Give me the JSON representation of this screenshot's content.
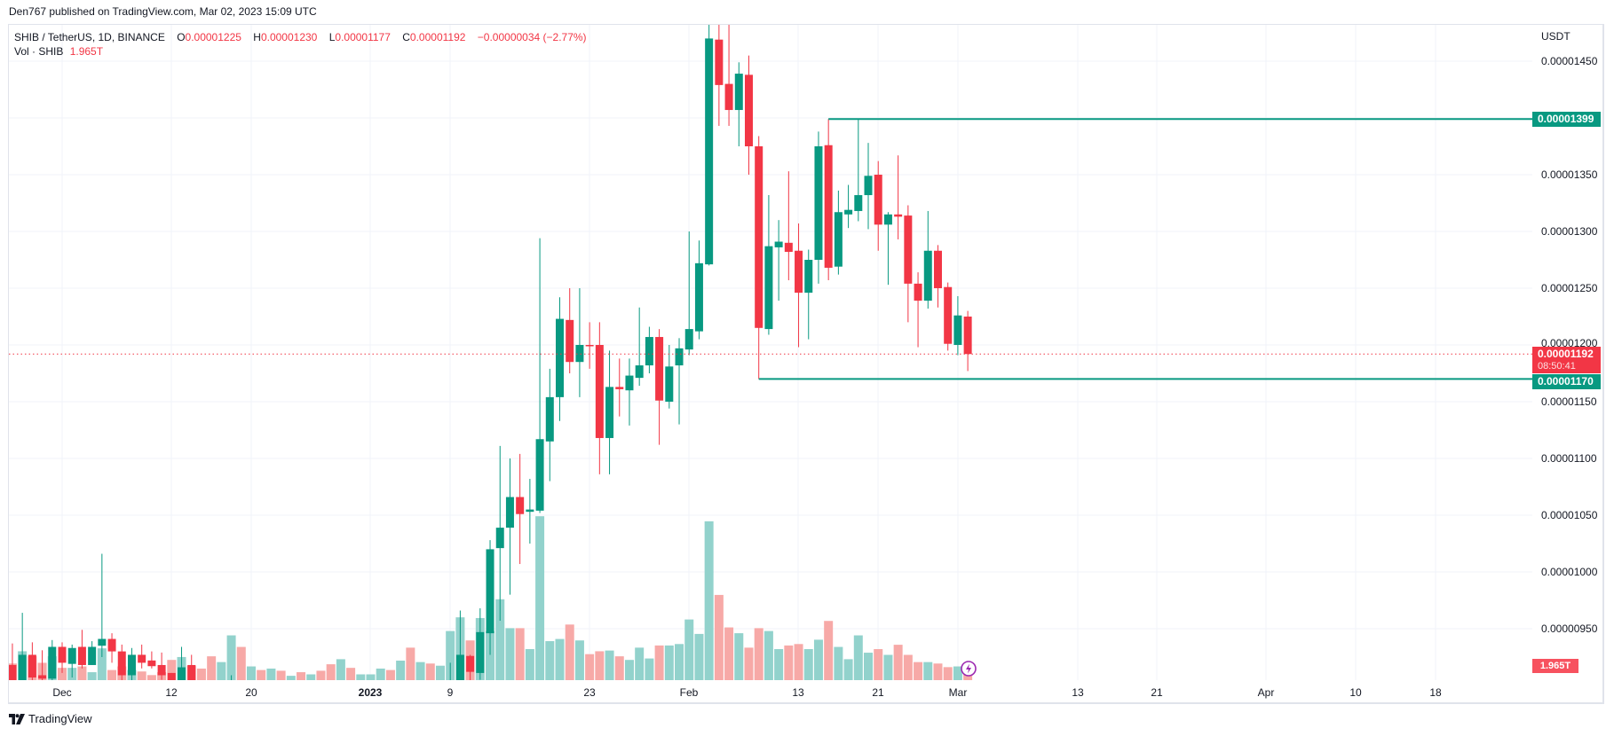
{
  "header": {
    "published": "Den767 published on TradingView.com, Mar 02, 2023 15:09 UTC"
  },
  "legend": {
    "symbol": "SHIB / TetherUS, 1D, BINANCE",
    "o_label": "O",
    "o": "0.00001225",
    "h_label": "H",
    "h": "0.00001230",
    "l_label": "L",
    "l": "0.00001177",
    "c_label": "C",
    "c": "0.00001192",
    "change": "−0.00000034 (−2.77%)",
    "vol_label": "Vol · SHIB",
    "vol_value": "1.965T"
  },
  "price_axis": {
    "unit": "USDT",
    "ticks": [
      "0.00001450",
      "0.00001350",
      "0.00001300",
      "0.00001250",
      "0.00001200",
      "0.00001150",
      "0.00001100",
      "0.00001050",
      "0.00001000",
      "0.00000950"
    ],
    "level_high_label": "0.00001399",
    "last_price_label": "0.00001192",
    "countdown": "08:50:41",
    "level_low_label": "0.00001170",
    "volume_label": "1.965T"
  },
  "time_axis": {
    "ticks": [
      "Dec",
      "12",
      "20",
      "2023",
      "9",
      "23",
      "Feb",
      "13",
      "21",
      "Mar",
      "13",
      "21",
      "Apr",
      "10",
      "18"
    ]
  },
  "branding": {
    "logo_text": "TradingView"
  },
  "colors": {
    "up": "#089981",
    "down": "#f23645",
    "up_volume": "#92d2cc",
    "down_volume": "#f7a9a7",
    "level_line": "#089981",
    "last_price_line": "#f23645",
    "grid": "#f0f3fa",
    "alert_icon": "#9c27b0"
  },
  "icons": {
    "alert": "lightning-icon",
    "logo": "tradingview-logo-icon"
  },
  "chart_data": {
    "type": "candlestick",
    "symbol": "SHIB / TetherUS",
    "interval": "1D",
    "exchange": "BINANCE",
    "ylabel": "USDT",
    "ylim": [
      9.05e-06,
      1.483e-05
    ],
    "grid": true,
    "horizontal_levels": [
      {
        "price": 1.399e-05,
        "from": "2023-02-16"
      },
      {
        "price": 1.17e-05,
        "from": "2023-02-09"
      }
    ],
    "last_price": 1.192e-05,
    "volume_unit": "T",
    "columns": [
      "date",
      "open",
      "high",
      "low",
      "close",
      "volume",
      "up"
    ],
    "candles": [
      [
        "2022-11-26",
        9.18e-06,
        9.37e-06,
        9e-06,
        9.03e-06,
        2.3,
        false
      ],
      [
        "2022-11-27",
        9.03e-06,
        9.64e-06,
        9e-06,
        9.27e-06,
        4.0,
        true
      ],
      [
        "2022-11-28",
        9.27e-06,
        9.38e-06,
        9.02e-06,
        9.07e-06,
        3.3,
        false
      ],
      [
        "2022-11-29",
        9.09e-06,
        9.31e-06,
        9.03e-06,
        9.06e-06,
        2.4,
        false
      ],
      [
        "2022-11-30",
        9.06e-06,
        9.4e-06,
        9.04e-06,
        9.34e-06,
        3.3,
        true
      ],
      [
        "2022-12-01",
        9.34e-06,
        9.38e-06,
        9.11e-06,
        9.2e-06,
        1.7,
        false
      ],
      [
        "2022-12-02",
        9.19e-06,
        9.36e-06,
        9.07e-06,
        9.33e-06,
        1.7,
        true
      ],
      [
        "2022-12-03",
        9.34e-06,
        9.49e-06,
        9.15e-06,
        9.18e-06,
        1.9,
        false
      ],
      [
        "2022-12-04",
        9.18e-06,
        9.39e-06,
        9.18e-06,
        9.34e-06,
        1.1,
        true
      ],
      [
        "2022-12-05",
        9.35e-06,
        1.016e-05,
        9.25e-06,
        9.41e-06,
        4.4,
        true
      ],
      [
        "2022-12-06",
        9.41e-06,
        9.46e-06,
        9.2e-06,
        9.3e-06,
        1.4,
        false
      ],
      [
        "2022-12-07",
        9.3e-06,
        9.36e-06,
        9.04e-06,
        9.09e-06,
        1.9,
        false
      ],
      [
        "2022-12-08",
        9.09e-06,
        9.33e-06,
        9.04e-06,
        9.27e-06,
        1.4,
        true
      ],
      [
        "2022-12-09",
        9.27e-06,
        9.36e-06,
        9.15e-06,
        9.2e-06,
        1.2,
        false
      ],
      [
        "2022-12-10",
        9.22e-06,
        9.3e-06,
        9.15e-06,
        9.17e-06,
        0.7,
        false
      ],
      [
        "2022-12-11",
        9.18e-06,
        9.29e-06,
        9.05e-06,
        9.09e-06,
        1.1,
        false
      ],
      [
        "2022-12-12",
        9.11e-06,
        9.11e-06,
        9e-06,
        9.03e-06,
        2.8,
        false
      ],
      [
        "2022-12-13",
        9.03e-06,
        9.34e-06,
        9e-06,
        9.16e-06,
        3.2,
        true
      ],
      [
        "2022-12-14",
        9.18e-06,
        9.27e-06,
        9e-06,
        9.03e-06,
        2.0,
        false
      ],
      [
        "2022-12-15",
        null,
        null,
        null,
        null,
        1.6,
        false
      ],
      [
        "2022-12-16",
        null,
        null,
        null,
        null,
        3.3,
        false
      ],
      [
        "2022-12-17",
        null,
        null,
        null,
        null,
        2.5,
        true
      ],
      [
        "2022-12-18",
        null,
        9.09e-06,
        null,
        null,
        6.2,
        true
      ],
      [
        "2022-12-19",
        null,
        null,
        null,
        null,
        4.6,
        false
      ],
      [
        "2022-12-20",
        null,
        null,
        null,
        null,
        1.9,
        true
      ],
      [
        "2022-12-21",
        null,
        null,
        null,
        null,
        1.4,
        false
      ],
      [
        "2022-12-22",
        null,
        null,
        null,
        null,
        1.6,
        true
      ],
      [
        "2022-12-23",
        null,
        null,
        null,
        null,
        1.3,
        false
      ],
      [
        "2022-12-24",
        null,
        null,
        null,
        null,
        0.6,
        true
      ],
      [
        "2022-12-25",
        null,
        null,
        null,
        null,
        1.1,
        false
      ],
      [
        "2022-12-26",
        null,
        null,
        null,
        null,
        0.8,
        true
      ],
      [
        "2022-12-27",
        null,
        null,
        null,
        null,
        1.3,
        false
      ],
      [
        "2022-12-28",
        null,
        null,
        null,
        null,
        2.2,
        false
      ],
      [
        "2022-12-29",
        null,
        null,
        null,
        null,
        2.9,
        true
      ],
      [
        "2022-12-30",
        null,
        null,
        null,
        null,
        1.7,
        false
      ],
      [
        "2022-12-31",
        null,
        null,
        null,
        null,
        0.8,
        true
      ],
      [
        "2023-01-01",
        null,
        null,
        null,
        null,
        0.8,
        true
      ],
      [
        "2023-01-02",
        null,
        null,
        null,
        null,
        1.6,
        true
      ],
      [
        "2023-01-03",
        null,
        null,
        null,
        null,
        1.4,
        false
      ],
      [
        "2023-01-04",
        null,
        null,
        null,
        null,
        2.7,
        true
      ],
      [
        "2023-01-05",
        null,
        null,
        null,
        null,
        4.5,
        false
      ],
      [
        "2023-01-06",
        null,
        null,
        null,
        null,
        2.5,
        true
      ],
      [
        "2023-01-07",
        null,
        null,
        null,
        null,
        2.3,
        false
      ],
      [
        "2023-01-08",
        null,
        null,
        null,
        null,
        2.0,
        true
      ],
      [
        "2023-01-09",
        null,
        9.2e-06,
        null,
        null,
        6.8,
        true
      ],
      [
        "2023-01-10",
        9e-06,
        9.66e-06,
        9e-06,
        9.27e-06,
        8.7,
        true
      ],
      [
        "2023-01-11",
        9.26e-06,
        9.27e-06,
        9e-06,
        9.12e-06,
        5.5,
        false
      ],
      [
        "2023-01-12",
        9.11e-06,
        9.68e-06,
        9.05e-06,
        9.47e-06,
        8.6,
        true
      ],
      [
        "2023-01-13",
        9.46e-06,
        1.028e-05,
        9.27e-06,
        1.02e-05,
        6.8,
        true
      ],
      [
        "2023-01-14",
        1.021e-05,
        1.111e-05,
        9.57e-06,
        1.039e-05,
        11.2,
        true
      ],
      [
        "2023-01-15",
        1.039e-05,
        1.1e-05,
        9.8e-06,
        1.066e-05,
        7.2,
        true
      ],
      [
        "2023-01-16",
        1.066e-05,
        1.104e-05,
        1.007e-05,
        1.051e-05,
        7.2,
        false
      ],
      [
        "2023-01-17",
        1.053e-05,
        1.082e-05,
        1.025e-05,
        1.055e-05,
        4.3,
        true
      ],
      [
        "2023-01-18",
        1.054e-05,
        1.294e-05,
        1.052e-05,
        1.117e-05,
        22.7,
        true
      ],
      [
        "2023-01-19",
        1.115e-05,
        1.179e-05,
        1.08e-05,
        1.154e-05,
        5.4,
        true
      ],
      [
        "2023-01-20",
        1.154e-05,
        1.242e-05,
        1.133e-05,
        1.223e-05,
        5.7,
        true
      ],
      [
        "2023-01-21",
        1.222e-05,
        1.25e-05,
        1.175e-05,
        1.185e-05,
        7.7,
        false
      ],
      [
        "2023-01-22",
        1.185e-05,
        1.25e-05,
        1.154e-05,
        1.2e-05,
        5.5,
        true
      ],
      [
        "2023-01-23",
        1.2e-05,
        1.22e-05,
        1.179e-05,
        1.199e-05,
        3.6,
        false
      ],
      [
        "2023-01-24",
        1.2e-05,
        1.22e-05,
        1.086e-05,
        1.118e-05,
        4.0,
        false
      ],
      [
        "2023-01-25",
        1.118e-05,
        1.195e-05,
        1.086e-05,
        1.163e-05,
        4.1,
        true
      ],
      [
        "2023-01-26",
        1.163e-05,
        1.188e-05,
        1.137e-05,
        1.161e-05,
        3.3,
        false
      ],
      [
        "2023-01-27",
        1.16e-05,
        1.188e-05,
        1.129e-05,
        1.173e-05,
        2.8,
        true
      ],
      [
        "2023-01-28",
        1.171e-05,
        1.233e-05,
        1.164e-05,
        1.182e-05,
        4.5,
        true
      ],
      [
        "2023-01-29",
        1.182e-05,
        1.216e-05,
        1.175e-05,
        1.207e-05,
        3.0,
        true
      ],
      [
        "2023-01-30",
        1.207e-05,
        1.214e-05,
        1.112e-05,
        1.151e-05,
        4.8,
        false
      ],
      [
        "2023-01-31",
        1.15e-05,
        1.2e-05,
        1.144e-05,
        1.181e-05,
        4.8,
        true
      ],
      [
        "2023-02-01",
        1.182e-05,
        1.206e-05,
        1.13e-05,
        1.197e-05,
        5.0,
        true
      ],
      [
        "2023-02-02",
        1.196e-05,
        1.3e-05,
        1.191e-05,
        1.214e-05,
        8.4,
        true
      ],
      [
        "2023-02-03",
        1.212e-05,
        1.292e-05,
        1.205e-05,
        1.272e-05,
        6.4,
        true
      ],
      [
        "2023-02-04",
        1.271e-05,
        1.483e-05,
        1.27e-05,
        1.47e-05,
        22.0,
        true
      ],
      [
        "2023-02-05",
        1.469e-05,
        1.483e-05,
        1.393e-05,
        1.429e-05,
        11.8,
        false
      ],
      [
        "2023-02-06",
        1.43e-05,
        1.483e-05,
        1.393e-05,
        1.407e-05,
        7.3,
        false
      ],
      [
        "2023-02-07",
        1.407e-05,
        1.449e-05,
        1.375e-05,
        1.439e-05,
        6.5,
        true
      ],
      [
        "2023-02-08",
        1.438e-05,
        1.455e-05,
        1.35e-05,
        1.375e-05,
        4.5,
        false
      ],
      [
        "2023-02-09",
        1.375e-05,
        1.384e-05,
        1.17e-05,
        1.215e-05,
        7.2,
        false
      ],
      [
        "2023-02-10",
        1.214e-05,
        1.332e-05,
        1.209e-05,
        1.287e-05,
        6.8,
        true
      ],
      [
        "2023-02-11",
        1.286e-05,
        1.31e-05,
        1.239e-05,
        1.291e-05,
        4.3,
        true
      ],
      [
        "2023-02-12",
        1.29e-05,
        1.353e-05,
        1.257e-05,
        1.282e-05,
        4.8,
        false
      ],
      [
        "2023-02-13",
        1.283e-05,
        1.307e-05,
        1.198e-05,
        1.246e-05,
        5.0,
        false
      ],
      [
        "2023-02-14",
        1.246e-05,
        1.284e-05,
        1.205e-05,
        1.275e-05,
        4.3,
        true
      ],
      [
        "2023-02-15",
        1.275e-05,
        1.388e-05,
        1.254e-05,
        1.375e-05,
        5.6,
        true
      ],
      [
        "2023-02-16",
        1.376e-05,
        1.399e-05,
        1.257e-05,
        1.268e-05,
        8.2,
        false
      ],
      [
        "2023-02-17",
        1.269e-05,
        1.336e-05,
        1.262e-05,
        1.317e-05,
        4.6,
        true
      ],
      [
        "2023-02-18",
        1.315e-05,
        1.341e-05,
        1.303e-05,
        1.319e-05,
        2.9,
        true
      ],
      [
        "2023-02-19",
        1.318e-05,
        1.399e-05,
        1.309e-05,
        1.332e-05,
        6.2,
        true
      ],
      [
        "2023-02-20",
        1.332e-05,
        1.378e-05,
        1.302e-05,
        1.349e-05,
        3.8,
        true
      ],
      [
        "2023-02-21",
        1.35e-05,
        1.362e-05,
        1.283e-05,
        1.306e-05,
        4.3,
        false
      ],
      [
        "2023-02-22",
        1.306e-05,
        1.317e-05,
        1.253e-05,
        1.315e-05,
        3.5,
        true
      ],
      [
        "2023-02-23",
        1.315e-05,
        1.367e-05,
        1.293e-05,
        1.313e-05,
        4.9,
        false
      ],
      [
        "2023-02-24",
        1.314e-05,
        1.323e-05,
        1.22e-05,
        1.254e-05,
        3.5,
        false
      ],
      [
        "2023-02-25",
        1.254e-05,
        1.264e-05,
        1.198e-05,
        1.239e-05,
        2.5,
        false
      ],
      [
        "2023-02-26",
        1.239e-05,
        1.318e-05,
        1.232e-05,
        1.283e-05,
        2.5,
        true
      ],
      [
        "2023-02-27",
        1.283e-05,
        1.288e-05,
        1.233e-05,
        1.25e-05,
        2.3,
        false
      ],
      [
        "2023-02-28",
        1.251e-05,
        1.255e-05,
        1.195e-05,
        1.201e-05,
        1.8,
        false
      ],
      [
        "2023-03-01",
        1.2e-05,
        1.243e-05,
        1.191e-05,
        1.226e-05,
        1.9,
        true
      ],
      [
        "2023-03-02",
        1.225e-05,
        1.23e-05,
        1.177e-05,
        1.192e-05,
        1.965,
        false
      ]
    ]
  }
}
